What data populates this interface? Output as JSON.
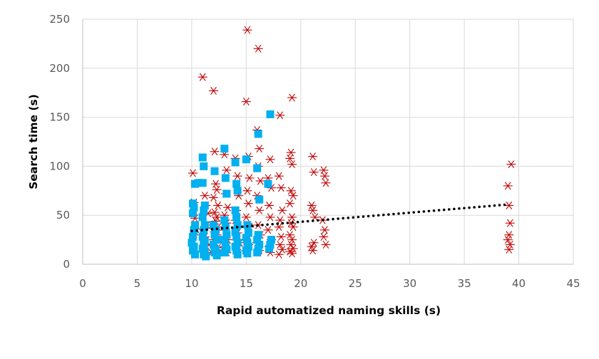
{
  "chart_data": {
    "type": "scatter",
    "title": "",
    "xlabel": "Rapid automatized naming skills (s)",
    "ylabel": "Search time (s)",
    "xlim": [
      0,
      45
    ],
    "ylim": [
      0,
      250
    ],
    "xticks": [
      0,
      5,
      10,
      15,
      20,
      25,
      30,
      35,
      40,
      45
    ],
    "yticks": [
      0,
      50,
      100,
      150,
      200,
      250
    ],
    "grid": true,
    "legend": "none",
    "series": [
      {
        "marker": "asterisk",
        "color": "#c00000",
        "points": [
          [
            10.1,
            93
          ],
          [
            10.2,
            63
          ],
          [
            10.3,
            47
          ],
          [
            10.4,
            36
          ],
          [
            10.2,
            30
          ],
          [
            11.0,
            191
          ],
          [
            11.2,
            70
          ],
          [
            11.3,
            60
          ],
          [
            11.5,
            52
          ],
          [
            11.4,
            40
          ],
          [
            11.2,
            28
          ],
          [
            11.6,
            20
          ],
          [
            11.8,
            12
          ],
          [
            12.0,
            177
          ],
          [
            12.1,
            115
          ],
          [
            12.2,
            82
          ],
          [
            12.3,
            76
          ],
          [
            12.0,
            68
          ],
          [
            12.4,
            60
          ],
          [
            12.1,
            53
          ],
          [
            12.3,
            48
          ],
          [
            12.2,
            44
          ],
          [
            12.4,
            38
          ],
          [
            12.1,
            33
          ],
          [
            12.3,
            30
          ],
          [
            12.0,
            25
          ],
          [
            12.2,
            22
          ],
          [
            12.4,
            17
          ],
          [
            12.1,
            13
          ],
          [
            12.3,
            10
          ],
          [
            13.0,
            112
          ],
          [
            13.2,
            96
          ],
          [
            13.1,
            72
          ],
          [
            13.3,
            58
          ],
          [
            13.0,
            50
          ],
          [
            13.2,
            42
          ],
          [
            13.1,
            35
          ],
          [
            13.3,
            25
          ],
          [
            13.0,
            18
          ],
          [
            13.2,
            12
          ],
          [
            14.0,
            108
          ],
          [
            14.2,
            90
          ],
          [
            14.3,
            70
          ],
          [
            14.1,
            55
          ],
          [
            14.0,
            45
          ],
          [
            14.2,
            32
          ],
          [
            14.4,
            22
          ],
          [
            14.1,
            15
          ],
          [
            15.1,
            239
          ],
          [
            15.0,
            166
          ],
          [
            15.2,
            110
          ],
          [
            15.3,
            88
          ],
          [
            15.1,
            75
          ],
          [
            15.2,
            62
          ],
          [
            15.0,
            48
          ],
          [
            15.3,
            38
          ],
          [
            15.1,
            30
          ],
          [
            15.2,
            20
          ],
          [
            15.0,
            14
          ],
          [
            16.1,
            220
          ],
          [
            16.0,
            137
          ],
          [
            16.2,
            118
          ],
          [
            16.1,
            100
          ],
          [
            16.3,
            85
          ],
          [
            16.0,
            70
          ],
          [
            16.2,
            55
          ],
          [
            16.1,
            40
          ],
          [
            16.3,
            30
          ],
          [
            16.0,
            22
          ],
          [
            16.2,
            14
          ],
          [
            17.2,
            107
          ],
          [
            17.0,
            88
          ],
          [
            17.3,
            78
          ],
          [
            17.1,
            60
          ],
          [
            17.2,
            48
          ],
          [
            17.0,
            35
          ],
          [
            17.3,
            25
          ],
          [
            17.1,
            18
          ],
          [
            17.2,
            12
          ],
          [
            18.1,
            152
          ],
          [
            18.0,
            90
          ],
          [
            18.2,
            78
          ],
          [
            18.3,
            55
          ],
          [
            18.1,
            45
          ],
          [
            18.0,
            38
          ],
          [
            18.2,
            28
          ],
          [
            18.1,
            20
          ],
          [
            18.3,
            15
          ],
          [
            18.0,
            10
          ],
          [
            19.2,
            170
          ],
          [
            19.1,
            114
          ],
          [
            19.0,
            108
          ],
          [
            19.2,
            102
          ],
          [
            19.1,
            75
          ],
          [
            19.3,
            70
          ],
          [
            19.0,
            62
          ],
          [
            19.2,
            48
          ],
          [
            19.1,
            42
          ],
          [
            19.3,
            38
          ],
          [
            19.0,
            30
          ],
          [
            19.2,
            25
          ],
          [
            19.1,
            20
          ],
          [
            19.3,
            16
          ],
          [
            19.0,
            13
          ],
          [
            19.2,
            11
          ],
          [
            21.1,
            110
          ],
          [
            21.2,
            94
          ],
          [
            21.0,
            60
          ],
          [
            21.1,
            55
          ],
          [
            21.3,
            48
          ],
          [
            21.2,
            22
          ],
          [
            21.0,
            18
          ],
          [
            21.1,
            14
          ],
          [
            22.1,
            96
          ],
          [
            22.2,
            90
          ],
          [
            22.3,
            83
          ],
          [
            22.0,
            45
          ],
          [
            22.2,
            35
          ],
          [
            22.1,
            28
          ],
          [
            22.3,
            20
          ],
          [
            39.3,
            102
          ],
          [
            39.0,
            80
          ],
          [
            39.1,
            60
          ],
          [
            39.2,
            42
          ],
          [
            39.1,
            30
          ],
          [
            39.0,
            25
          ],
          [
            39.2,
            20
          ],
          [
            39.1,
            15
          ]
        ]
      },
      {
        "marker": "square",
        "color": "#00b0f0",
        "points": [
          [
            10.1,
            62
          ],
          [
            10.2,
            58
          ],
          [
            10.1,
            52
          ],
          [
            10.3,
            40
          ],
          [
            10.2,
            35
          ],
          [
            10.1,
            28
          ],
          [
            10.0,
            22
          ],
          [
            10.2,
            18
          ],
          [
            10.1,
            14
          ],
          [
            10.3,
            10
          ],
          [
            10.3,
            82
          ],
          [
            10.6,
            83
          ],
          [
            11.0,
            109
          ],
          [
            11.1,
            100
          ],
          [
            11.0,
            83
          ],
          [
            11.2,
            60
          ],
          [
            11.1,
            55
          ],
          [
            11.0,
            48
          ],
          [
            11.2,
            40
          ],
          [
            11.1,
            35
          ],
          [
            11.0,
            28
          ],
          [
            11.2,
            24
          ],
          [
            11.1,
            20
          ],
          [
            11.0,
            16
          ],
          [
            11.2,
            13
          ],
          [
            11.1,
            10
          ],
          [
            11.3,
            8
          ],
          [
            12.1,
            95
          ],
          [
            12.0,
            40
          ],
          [
            12.2,
            35
          ],
          [
            12.1,
            30
          ],
          [
            12.3,
            25
          ],
          [
            12.0,
            20
          ],
          [
            12.2,
            15
          ],
          [
            12.1,
            12
          ],
          [
            12.3,
            9
          ],
          [
            13.0,
            118
          ],
          [
            13.1,
            88
          ],
          [
            13.2,
            72
          ],
          [
            13.0,
            45
          ],
          [
            13.1,
            38
          ],
          [
            13.2,
            30
          ],
          [
            13.0,
            25
          ],
          [
            13.1,
            20
          ],
          [
            13.2,
            15
          ],
          [
            13.0,
            12
          ],
          [
            14.0,
            104
          ],
          [
            14.1,
            82
          ],
          [
            14.2,
            75
          ],
          [
            14.0,
            55
          ],
          [
            14.1,
            48
          ],
          [
            14.2,
            40
          ],
          [
            14.0,
            33
          ],
          [
            14.1,
            28
          ],
          [
            14.2,
            22
          ],
          [
            14.0,
            18
          ],
          [
            14.1,
            14
          ],
          [
            14.2,
            10
          ],
          [
            15.0,
            107
          ],
          [
            15.1,
            40
          ],
          [
            15.2,
            32
          ],
          [
            15.0,
            27
          ],
          [
            15.1,
            22
          ],
          [
            15.2,
            18
          ],
          [
            15.0,
            14
          ],
          [
            15.1,
            11
          ],
          [
            16.1,
            133
          ],
          [
            16.0,
            98
          ],
          [
            16.2,
            66
          ],
          [
            16.1,
            30
          ],
          [
            16.0,
            25
          ],
          [
            16.2,
            20
          ],
          [
            16.1,
            16
          ],
          [
            16.0,
            12
          ],
          [
            17.2,
            153
          ],
          [
            17.0,
            82
          ],
          [
            17.3,
            25
          ],
          [
            17.2,
            20
          ],
          [
            17.1,
            16
          ]
        ]
      }
    ],
    "trendline": {
      "style": "dotted",
      "color": "#000000",
      "x": [
        10,
        39
      ],
      "y": [
        34,
        61
      ]
    }
  }
}
